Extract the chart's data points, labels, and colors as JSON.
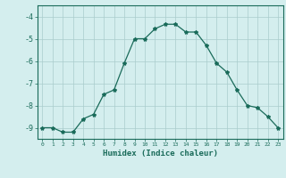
{
  "x": [
    0,
    1,
    2,
    3,
    4,
    5,
    6,
    7,
    8,
    9,
    10,
    11,
    12,
    13,
    14,
    15,
    16,
    17,
    18,
    19,
    20,
    21,
    22,
    23
  ],
  "y": [
    -9.0,
    -9.0,
    -9.2,
    -9.2,
    -8.6,
    -8.4,
    -7.5,
    -7.3,
    -6.1,
    -5.0,
    -5.0,
    -4.55,
    -4.35,
    -4.35,
    -4.7,
    -4.7,
    -5.3,
    -6.1,
    -6.5,
    -7.3,
    -8.0,
    -8.1,
    -8.5,
    -9.0
  ],
  "xlim": [
    -0.5,
    23.5
  ],
  "ylim": [
    -9.5,
    -3.5
  ],
  "yticks": [
    -9,
    -8,
    -7,
    -6,
    -5,
    -4
  ],
  "xticks": [
    0,
    1,
    2,
    3,
    4,
    5,
    6,
    7,
    8,
    9,
    10,
    11,
    12,
    13,
    14,
    15,
    16,
    17,
    18,
    19,
    20,
    21,
    22,
    23
  ],
  "xlabel": "Humidex (Indice chaleur)",
  "line_color": "#1a6b5a",
  "marker": "*",
  "marker_size": 3,
  "bg_color": "#d4eeee",
  "grid_color": "#aacccc"
}
